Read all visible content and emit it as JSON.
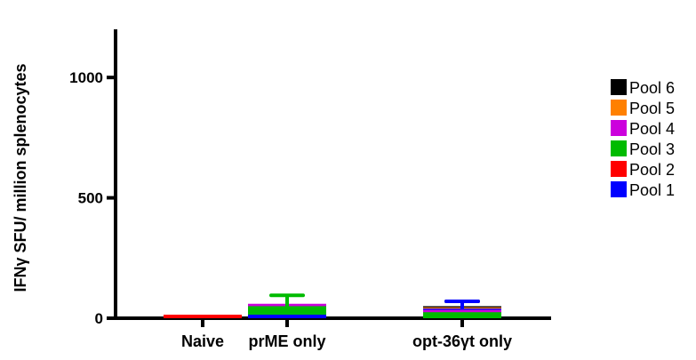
{
  "chart_data": {
    "type": "bar",
    "stacked": "overlaid",
    "ylabel": "IFNγ SFU/ million splenocytes",
    "xlabel": "",
    "ylim": [
      0,
      1200
    ],
    "yticks": [
      0,
      500,
      1000
    ],
    "categories": [
      "Naive",
      "prME only",
      "opt-36γt only"
    ],
    "legend_placement": "right",
    "grid": false,
    "series": [
      {
        "name": "Pool 6",
        "color": "#000000",
        "values": [
          0,
          0,
          50
        ],
        "errors": [
          0,
          0,
          20
        ]
      },
      {
        "name": "Pool 5",
        "color": "#ff8000",
        "values": [
          0,
          0,
          45
        ],
        "errors": [
          0,
          0,
          0
        ]
      },
      {
        "name": "Pool 4",
        "color": "#cc00dd",
        "values": [
          0,
          60,
          35
        ],
        "errors": [
          0,
          0,
          0
        ]
      },
      {
        "name": "Pool 3",
        "color": "#00bb00",
        "values": [
          0,
          50,
          25
        ],
        "errors": [
          0,
          45,
          0
        ]
      },
      {
        "name": "Pool 2",
        "color": "#ff0000",
        "values": [
          8,
          0,
          0
        ],
        "errors": [
          0,
          0,
          0
        ]
      },
      {
        "name": "Pool 1",
        "color": "#0000ff",
        "values": [
          0,
          10,
          40
        ],
        "errors": [
          0,
          0,
          30
        ]
      }
    ]
  }
}
